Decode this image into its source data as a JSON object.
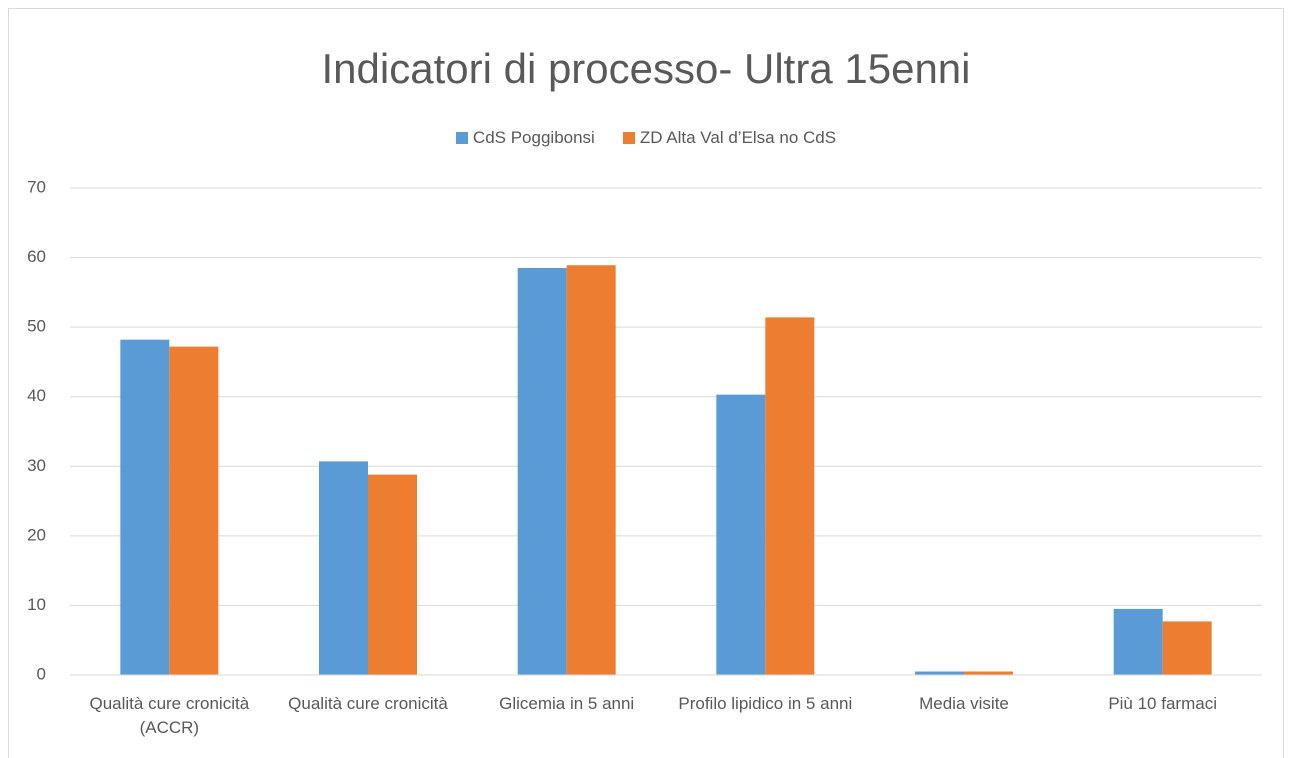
{
  "chart_data": {
    "type": "bar",
    "title": "Indicatori di processo- Ultra 15enni",
    "categories": [
      "Qualità cure cronicità (ACCR)",
      "Qualità cure cronicità",
      "Glicemia in 5 anni",
      "Profilo lipidico in 5 anni",
      "Media visite",
      "Più 10 farmaci"
    ],
    "series": [
      {
        "name": "CdS Poggibonsi",
        "color": "#5b9bd5",
        "values": [
          48.2,
          30.7,
          58.5,
          40.3,
          0.5,
          9.5
        ]
      },
      {
        "name": "ZD Alta Val d’Elsa no CdS",
        "color": "#ed7d31",
        "values": [
          47.2,
          28.8,
          58.9,
          51.4,
          0.5,
          7.7
        ]
      }
    ],
    "ylim": [
      0,
      70
    ],
    "yticks": [
      0,
      10,
      20,
      30,
      40,
      50,
      60,
      70
    ],
    "grid": true,
    "legend": "top"
  }
}
